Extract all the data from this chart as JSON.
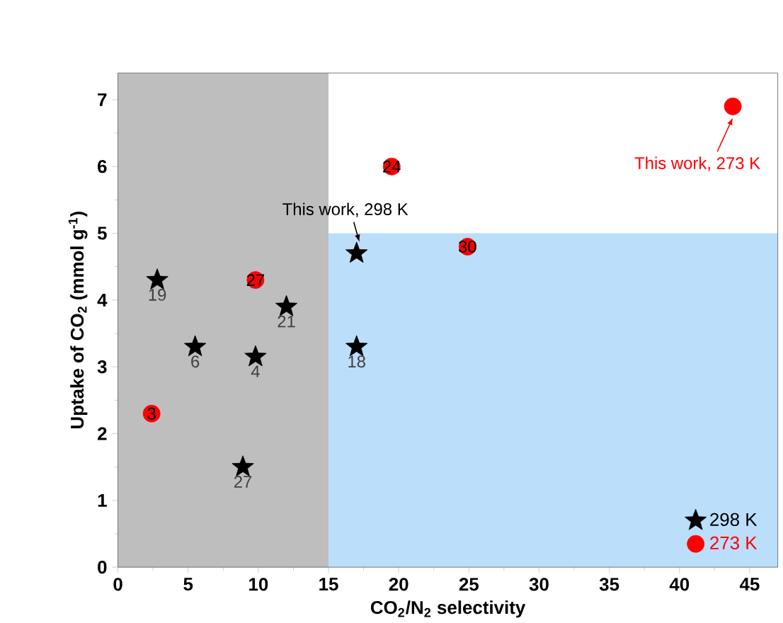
{
  "chart_data": {
    "type": "scatter",
    "xlabel": "CO$_{2}$/N$_{2}$ selectivity",
    "ylabel": "Uptake of CO$_{2}$ (mmol g$^{-1}$)",
    "xlim": [
      0,
      47
    ],
    "ylim": [
      0,
      7.4
    ],
    "xticks": [
      0,
      5,
      10,
      15,
      20,
      25,
      30,
      35,
      40,
      45
    ],
    "yticks": [
      0,
      1,
      2,
      3,
      4,
      5,
      6,
      7
    ],
    "legend": "bottom right",
    "grid": false,
    "bands": [
      {
        "axis": "y",
        "from": 0,
        "to": 5,
        "color": "#bbdefb"
      },
      {
        "axis": "x",
        "from": 0,
        "to": 15,
        "color": "#bebebe"
      }
    ],
    "series": [
      {
        "name": "298 K",
        "color": "#000000",
        "marker": "star",
        "x": [
          2.8,
          5.5,
          9.8,
          12,
          8.9,
          17,
          17
        ],
        "values": [
          4.3,
          3.3,
          3.15,
          3.9,
          1.5,
          3.3,
          4.7
        ]
      },
      {
        "name": "273 K",
        "color": "#ff0000",
        "marker": "circle",
        "x": [
          2.4,
          9.8,
          19.5,
          24.9,
          43.8
        ],
        "values": [
          2.3,
          4.3,
          6.0,
          4.8,
          6.9
        ]
      }
    ],
    "annotations": [
      {
        "text": "19",
        "x": 2.8,
        "y": 4.3
      },
      {
        "text": "6",
        "x": 5.5,
        "y": 3.3
      },
      {
        "text": "4",
        "x": 9.8,
        "y": 3.15
      },
      {
        "text": "21",
        "x": 12,
        "y": 3.9
      },
      {
        "text": "27",
        "x": 8.9,
        "y": 1.5
      },
      {
        "text": "18",
        "x": 17,
        "y": 3.3
      },
      {
        "text": "This work, 298 K",
        "x": 17,
        "y": 4.7
      },
      {
        "text": "3",
        "x": 2.4,
        "y": 2.3
      },
      {
        "text": "27",
        "x": 9.8,
        "y": 4.3
      },
      {
        "text": "24",
        "x": 19.5,
        "y": 6.0
      },
      {
        "text": "30",
        "x": 24.9,
        "y": 4.8
      },
      {
        "text": "This work, 273 K",
        "x": 43.8,
        "y": 6.9
      }
    ]
  }
}
